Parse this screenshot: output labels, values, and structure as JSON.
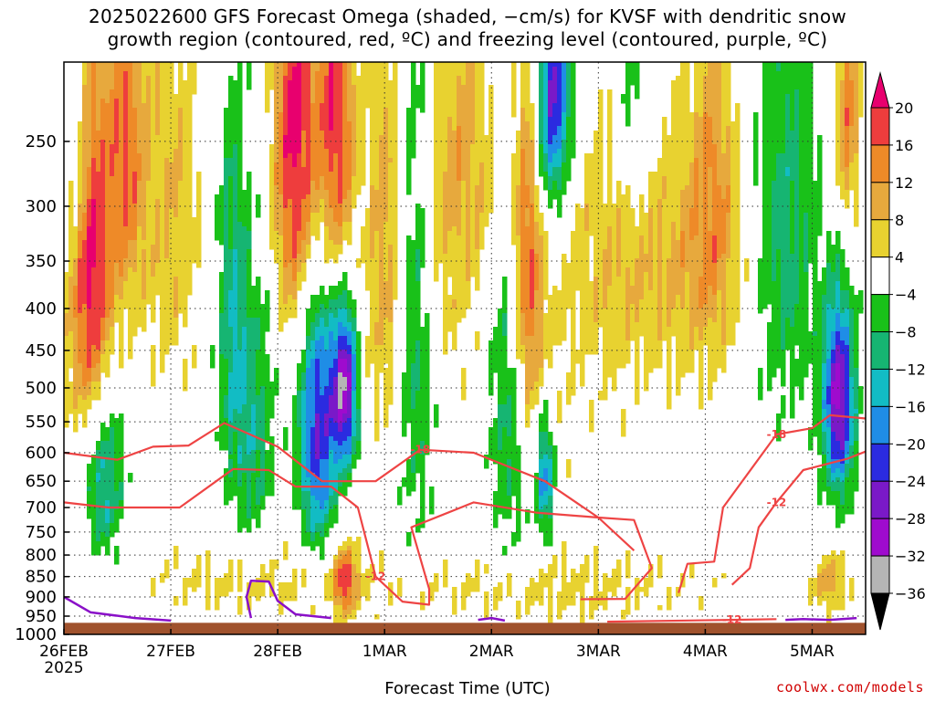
{
  "title": {
    "line1": "2025022600 GFS Forecast Omega (shaded, −cm/s) for KVSF with dendritic snow",
    "line2": "growth region (contoured, red, ºC) and freezing level (contoured, purple, ºC)"
  },
  "credit": "coolwx.com/models",
  "chart_data": {
    "type": "heatmap",
    "xlabel": "Forecast Time (UTC)",
    "ylabel": "",
    "x_ticks": [
      "26FEB",
      "27FEB",
      "28FEB",
      "1MAR",
      "2MAR",
      "3MAR",
      "4MAR",
      "5MAR"
    ],
    "x_tick_sublabel": "2025",
    "y_ticks": [
      250,
      300,
      350,
      400,
      450,
      500,
      550,
      600,
      650,
      700,
      750,
      800,
      850,
      900,
      950,
      1000
    ],
    "ylim": [
      1000,
      200
    ],
    "y_axis_scale": "log-pressure",
    "xlim_hours": [
      0,
      180
    ],
    "grid": "dotted",
    "colorbar": {
      "labels": [
        "20",
        "16",
        "12",
        "8",
        "4",
        "−4",
        "−8",
        "−12",
        "−16",
        "−20",
        "−24",
        "−28",
        "−32",
        "−36"
      ],
      "colors": [
        "#e8006e",
        "#ee3d3d",
        "#ee8a28",
        "#e7a93d",
        "#e8d230",
        "#ffffff",
        "#19c119",
        "#16b572",
        "#12bcc4",
        "#1f8de6",
        "#2b2be0",
        "#7a19c8",
        "#9f0bce",
        "#b5b5b5",
        "#000000"
      ]
    },
    "contours": {
      "dendritic_snow_red": [
        "-12",
        "-18"
      ],
      "freezing_level_purple": [
        "0"
      ]
    },
    "omega_features": [
      {
        "h": 6,
        "p": 360,
        "v": 22,
        "sx": 3.5,
        "sp": 140
      },
      {
        "h": 14,
        "p": 260,
        "v": 14,
        "sx": 3,
        "sp": 90
      },
      {
        "h": 3,
        "p": 250,
        "v": -10,
        "sx": 2,
        "sp": 70
      },
      {
        "h": 9,
        "p": 640,
        "v": -14,
        "sx": 3,
        "sp": 110
      },
      {
        "h": 24,
        "p": 300,
        "v": 8,
        "sx": 5,
        "sp": 120
      },
      {
        "h": 38,
        "p": 420,
        "v": -12,
        "sx": 2.5,
        "sp": 160
      },
      {
        "h": 43,
        "p": 560,
        "v": -10,
        "sx": 3,
        "sp": 140
      },
      {
        "h": 52,
        "p": 250,
        "v": 22,
        "sx": 3.5,
        "sp": 110
      },
      {
        "h": 61,
        "p": 240,
        "v": 20,
        "sx": 3,
        "sp": 90
      },
      {
        "h": 57,
        "p": 560,
        "v": -24,
        "sx": 3,
        "sp": 150
      },
      {
        "h": 63,
        "p": 500,
        "v": -30,
        "sx": 2,
        "sp": 80
      },
      {
        "h": 63,
        "p": 860,
        "v": 16,
        "sx": 2,
        "sp": 60
      },
      {
        "h": 72,
        "p": 330,
        "v": 10,
        "sx": 3,
        "sp": 150
      },
      {
        "h": 79,
        "p": 400,
        "v": -10,
        "sx": 3,
        "sp": 220
      },
      {
        "h": 86,
        "p": 320,
        "v": 6,
        "sx": 6,
        "sp": 120
      },
      {
        "h": 92,
        "p": 250,
        "v": 6,
        "sx": 6,
        "sp": 80
      },
      {
        "h": 100,
        "p": 500,
        "v": -10,
        "sx": 3,
        "sp": 200
      },
      {
        "h": 110,
        "p": 215,
        "v": -28,
        "sx": 3,
        "sp": 60
      },
      {
        "h": 104,
        "p": 360,
        "v": 18,
        "sx": 2.5,
        "sp": 140
      },
      {
        "h": 108,
        "p": 640,
        "v": -18,
        "sx": 1.5,
        "sp": 80
      },
      {
        "h": 112,
        "p": 330,
        "v": 4,
        "sx": 4,
        "sp": 200
      },
      {
        "h": 123,
        "p": 350,
        "v": 6,
        "sx": 6,
        "sp": 120
      },
      {
        "h": 127,
        "p": 220,
        "v": -8,
        "sx": 3,
        "sp": 60
      },
      {
        "h": 138,
        "p": 360,
        "v": 8,
        "sx": 9,
        "sp": 90
      },
      {
        "h": 146,
        "p": 280,
        "v": 10,
        "sx": 4,
        "sp": 100
      },
      {
        "h": 162,
        "p": 320,
        "v": -10,
        "sx": 5,
        "sp": 140
      },
      {
        "h": 174,
        "p": 520,
        "v": -30,
        "sx": 2.5,
        "sp": 100
      },
      {
        "h": 176,
        "p": 230,
        "v": 14,
        "sx": 2,
        "sp": 60
      },
      {
        "h": 172,
        "p": 860,
        "v": 10,
        "sx": 3,
        "sp": 50
      },
      {
        "h": 44,
        "p": 860,
        "v": 5,
        "sx": 20,
        "sp": 60
      },
      {
        "h": 110,
        "p": 880,
        "v": 5,
        "sx": 25,
        "sp": 60
      }
    ],
    "red_contours": [
      {
        "label": "-18",
        "points": [
          [
            0,
            600
          ],
          [
            12,
            612
          ],
          [
            20,
            590
          ],
          [
            28,
            588
          ],
          [
            36,
            552
          ],
          [
            48,
            590
          ],
          [
            58,
            650
          ],
          [
            70,
            650
          ],
          [
            80,
            595
          ],
          [
            92,
            600
          ],
          [
            108,
            650
          ],
          [
            120,
            720
          ],
          [
            128,
            725
          ],
          [
            132,
            830
          ],
          [
            126,
            905
          ],
          [
            116,
            906
          ]
        ]
      },
      {
        "label": "-12",
        "points": [
          [
            0,
            690
          ],
          [
            10,
            700
          ],
          [
            26,
            700
          ],
          [
            38,
            628
          ],
          [
            46,
            630
          ],
          [
            52,
            660
          ],
          [
            60,
            660
          ],
          [
            66,
            700
          ],
          [
            70,
            850
          ],
          [
            76,
            912
          ],
          [
            82,
            920
          ],
          [
            82,
            880
          ],
          [
            78,
            740
          ],
          [
            92,
            690
          ],
          [
            106,
            710
          ],
          [
            120,
            720
          ],
          [
            128,
            790
          ]
        ]
      },
      {
        "label": "-18",
        "points": [
          [
            138,
            890
          ],
          [
            140,
            820
          ],
          [
            146,
            815
          ],
          [
            148,
            700
          ],
          [
            160,
            570
          ],
          [
            168,
            560
          ],
          [
            172,
            540
          ],
          [
            180,
            545
          ]
        ]
      },
      {
        "label": "-12",
        "points": [
          [
            150,
            870
          ],
          [
            154,
            830
          ],
          [
            156,
            740
          ],
          [
            160,
            690
          ],
          [
            166,
            630
          ],
          [
            176,
            610
          ],
          [
            180,
            598
          ]
        ]
      },
      {
        "label": "-12",
        "points": [
          [
            122,
            965
          ],
          [
            150,
            960
          ],
          [
            160,
            958
          ]
        ]
      }
    ],
    "purple_contours": [
      {
        "points": [
          [
            0,
            900
          ],
          [
            6,
            940
          ],
          [
            16,
            955
          ],
          [
            24,
            962
          ]
        ]
      },
      {
        "points": [
          [
            42,
            955
          ],
          [
            41,
            900
          ],
          [
            42,
            860
          ],
          [
            46,
            862
          ],
          [
            48,
            910
          ],
          [
            52,
            945
          ],
          [
            60,
            955
          ]
        ]
      },
      {
        "points": [
          [
            93,
            960
          ],
          [
            96,
            955
          ],
          [
            99,
            962
          ]
        ]
      },
      {
        "points": [
          [
            162,
            960
          ],
          [
            166,
            958
          ],
          [
            172,
            960
          ],
          [
            178,
            955
          ]
        ]
      }
    ]
  }
}
